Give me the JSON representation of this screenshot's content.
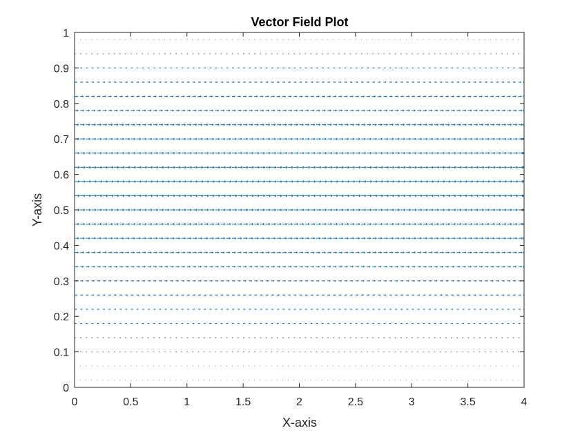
{
  "chart_data": {
    "type": "quiver",
    "title": "Vector Field Plot",
    "xlabel": "X-axis",
    "ylabel": "Y-axis",
    "xlim": [
      0,
      4
    ],
    "ylim": [
      0,
      1
    ],
    "xticks": [
      "0",
      "0.5",
      "1",
      "1.5",
      "2",
      "2.5",
      "3",
      "3.5",
      "4"
    ],
    "yticks": [
      "0",
      "0.1",
      "0.2",
      "0.3",
      "0.4",
      "0.5",
      "0.6",
      "0.7",
      "0.8",
      "0.9",
      "1"
    ],
    "grid": false,
    "box": true,
    "colors": {
      "vectors": "#0072bd",
      "axes": "#262626"
    },
    "series": [
      {
        "x_start": 0,
        "x_end": 4,
        "x_step": 0.05,
        "y": [
          0.02,
          0.06,
          0.1,
          0.14,
          0.18,
          0.22,
          0.26,
          0.3,
          0.34,
          0.38,
          0.42,
          0.46,
          0.5,
          0.54,
          0.58,
          0.62,
          0.66,
          0.7,
          0.74,
          0.78,
          0.82,
          0.86,
          0.9,
          0.94,
          0.98
        ],
        "u": [
          0.05,
          0.1,
          0.16,
          0.24,
          0.31,
          0.39,
          0.47,
          0.56,
          0.64,
          0.72,
          0.8,
          0.87,
          0.92,
          0.97,
          1.0,
          0.97,
          0.92,
          0.87,
          0.8,
          0.7,
          0.6,
          0.45,
          0.35,
          0.2,
          0.1
        ],
        "v": 0
      }
    ]
  }
}
